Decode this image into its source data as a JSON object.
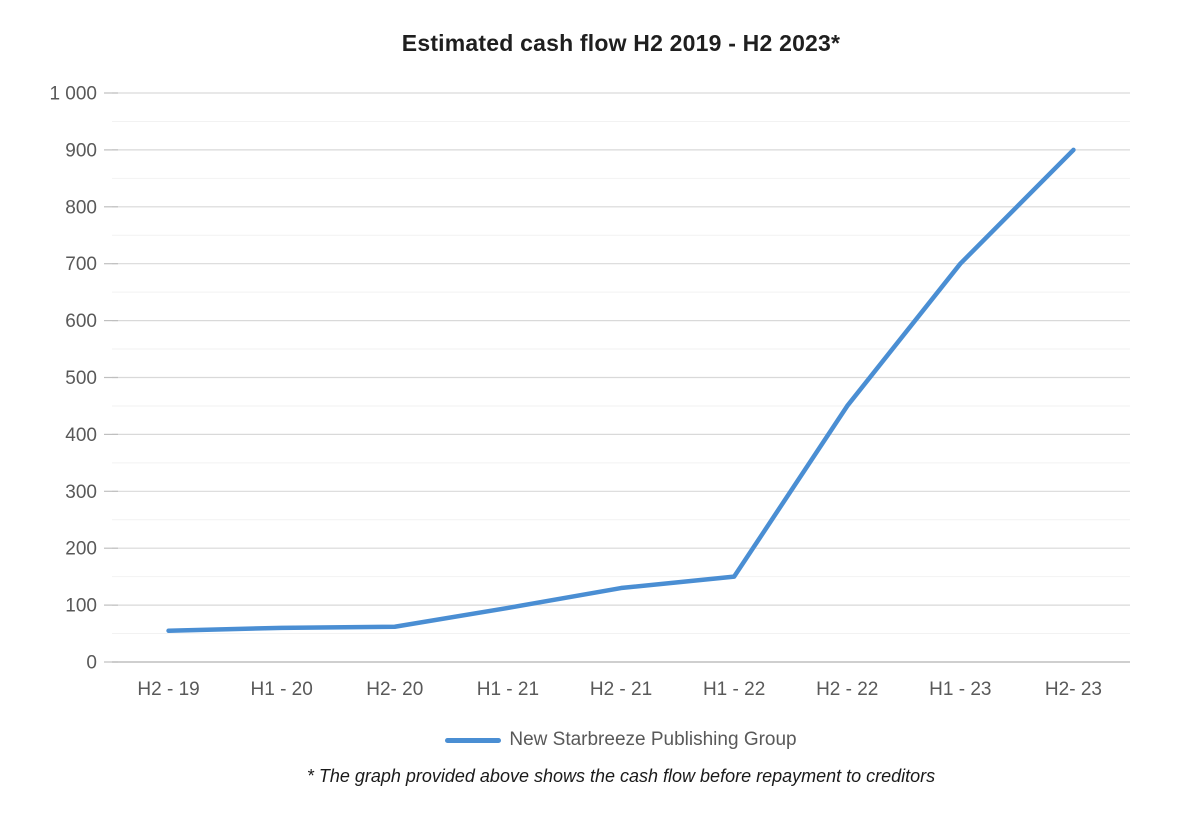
{
  "title": "Estimated cash flow H2 2019 - H2 2023*",
  "footnote": "* The graph provided above shows the cash flow before repayment to creditors",
  "legend": {
    "series_label": "New Starbreeze Publishing Group"
  },
  "colors": {
    "series_line": "#4a8ed3",
    "grid_major": "#d9d9d9",
    "grid_minor": "#f2f2f2",
    "axis_line": "#bfbfbf",
    "tick_label": "#595959",
    "title_text": "#1f1f1f",
    "footnote_text": "#1a1a1a"
  },
  "chart_data": {
    "type": "line",
    "title": "Estimated cash flow H2 2019 - H2 2023*",
    "categories": [
      "H2 - 19",
      "H1 - 20",
      "H2- 20",
      "H1 - 21",
      "H2 - 21",
      "H1 - 22",
      "H2 - 22",
      "H1 - 23",
      "H2- 23"
    ],
    "series": [
      {
        "name": "New Starbreeze Publishing Group",
        "values": [
          55,
          60,
          62,
          95,
          130,
          150,
          450,
          700,
          900
        ]
      }
    ],
    "xlabel": "",
    "ylabel": "",
    "ylim": [
      0,
      1000
    ],
    "ytick_step": 100,
    "yminor_step": 50,
    "ytick_labels": [
      "0",
      "100",
      "200",
      "300",
      "400",
      "500",
      "600",
      "700",
      "800",
      "900",
      "1 000"
    ],
    "grid": "horizontal-major-and-minor",
    "legend_position": "bottom",
    "footnote": "* The graph provided above shows the cash flow before repayment to creditors"
  }
}
